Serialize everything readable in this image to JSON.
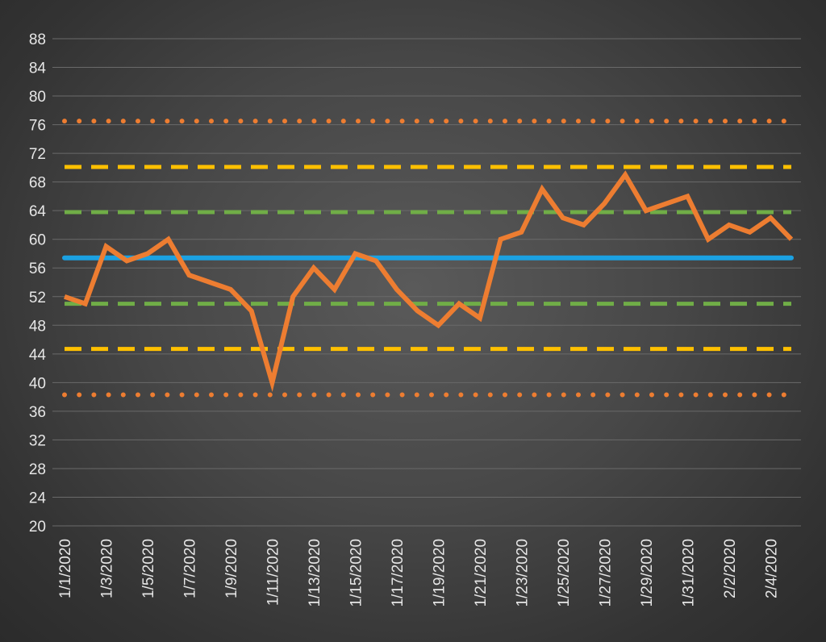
{
  "chart_data": {
    "type": "line",
    "title": "",
    "xlabel": "",
    "ylabel": "",
    "ylim": [
      20,
      88
    ],
    "y_ticks": [
      20,
      24,
      28,
      32,
      36,
      40,
      44,
      48,
      52,
      56,
      60,
      64,
      68,
      72,
      76,
      80,
      84,
      88
    ],
    "grid": "horizontal",
    "legend": "none",
    "x": [
      "1/1/2020",
      "1/2/2020",
      "1/3/2020",
      "1/4/2020",
      "1/5/2020",
      "1/6/2020",
      "1/7/2020",
      "1/8/2020",
      "1/9/2020",
      "1/10/2020",
      "1/11/2020",
      "1/12/2020",
      "1/13/2020",
      "1/14/2020",
      "1/15/2020",
      "1/16/2020",
      "1/17/2020",
      "1/18/2020",
      "1/19/2020",
      "1/20/2020",
      "1/21/2020",
      "1/22/2020",
      "1/23/2020",
      "1/24/2020",
      "1/25/2020",
      "1/26/2020",
      "1/27/2020",
      "1/28/2020",
      "1/29/2020",
      "1/30/2020",
      "1/31/2020",
      "2/1/2020",
      "2/2/2020",
      "2/3/2020",
      "2/4/2020",
      "2/5/2020"
    ],
    "x_tick_labels": [
      "1/1/2020",
      "1/3/2020",
      "1/5/2020",
      "1/7/2020",
      "1/9/2020",
      "1/11/2020",
      "1/13/2020",
      "1/15/2020",
      "1/17/2020",
      "1/19/2020",
      "1/21/2020",
      "1/23/2020",
      "1/25/2020",
      "1/27/2020",
      "1/29/2020",
      "1/31/2020",
      "2/2/2020",
      "2/4/2020"
    ],
    "series": [
      {
        "style": "solid",
        "color": "#ed7d31",
        "values": [
          52,
          51,
          59,
          57,
          58,
          60,
          55,
          54,
          53,
          50,
          40,
          52,
          56,
          53,
          58,
          57,
          53,
          50,
          48,
          51,
          49,
          60,
          61,
          67,
          63,
          62,
          65,
          69,
          64,
          65,
          66,
          60,
          62,
          61,
          63,
          60
        ]
      }
    ],
    "reference_lines": [
      {
        "value": 57.4,
        "style": "solid",
        "color": "#1ba1e2"
      },
      {
        "value": 63.8,
        "style": "dashed",
        "color": "#70ad47"
      },
      {
        "value": 51.0,
        "style": "dashed",
        "color": "#70ad47"
      },
      {
        "value": 70.1,
        "style": "dashed",
        "color": "#ffc000"
      },
      {
        "value": 44.7,
        "style": "dashed",
        "color": "#ffc000"
      },
      {
        "value": 76.5,
        "style": "dotted",
        "color": "#ed7d31"
      },
      {
        "value": 38.3,
        "style": "dotted",
        "color": "#ed7d31"
      }
    ]
  }
}
